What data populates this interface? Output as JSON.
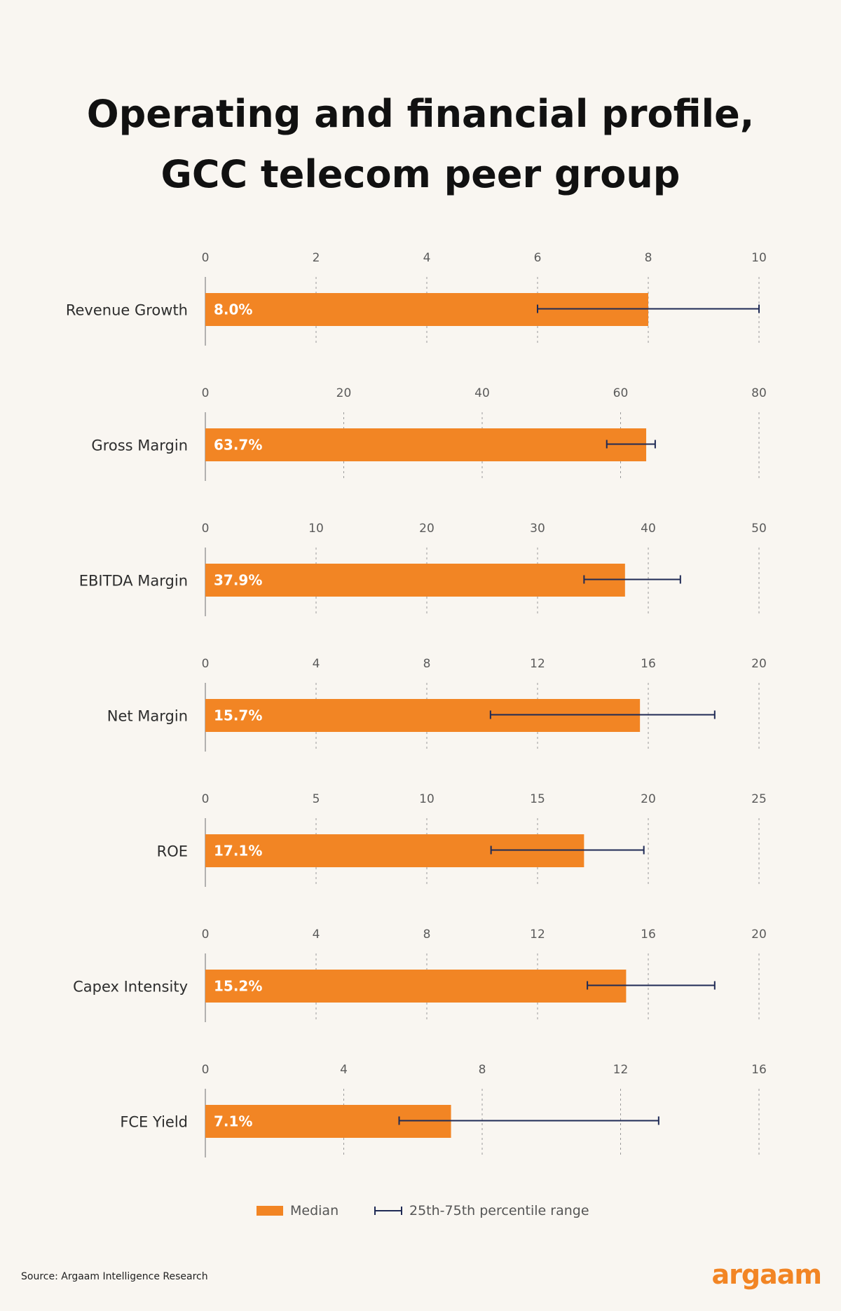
{
  "title_line1": "Operating and financial profile,",
  "title_line2": "GCC telecom peer group",
  "colors": {
    "background": "#f9f6f1",
    "bar": "#f28524",
    "whisker": "#1f2a55",
    "axis": "#9a9a9a",
    "gridline": "#9a9a9a"
  },
  "legend": {
    "median_label": "Median",
    "range_label": "25th-75th percentile range"
  },
  "source": "Source: Argaam Intelligence Research",
  "brand": "argaam",
  "chart_data": [
    {
      "type": "bar",
      "category": "Revenue Growth",
      "value": 8.0,
      "value_label": "8.0%",
      "range": [
        6.0,
        10.0
      ],
      "xlim": [
        0,
        10
      ],
      "ticks": [
        0,
        2,
        4,
        6,
        8,
        10
      ],
      "unit": "%"
    },
    {
      "type": "bar",
      "category": "Gross Margin",
      "value": 63.7,
      "value_label": "63.7%",
      "range": [
        58.0,
        65.0
      ],
      "xlim": [
        0,
        80
      ],
      "ticks": [
        0,
        20,
        40,
        60,
        80
      ],
      "unit": "%"
    },
    {
      "type": "bar",
      "category": "EBITDA Margin",
      "value": 37.9,
      "value_label": "37.9%",
      "range": [
        34.2,
        42.9
      ],
      "xlim": [
        0,
        50
      ],
      "ticks": [
        0,
        10,
        20,
        30,
        40,
        50
      ],
      "unit": "%"
    },
    {
      "type": "bar",
      "category": "Net Margin",
      "value": 15.7,
      "value_label": "15.7%",
      "range": [
        10.3,
        18.4
      ],
      "xlim": [
        0,
        20
      ],
      "ticks": [
        0,
        4,
        8,
        12,
        16,
        20
      ],
      "unit": "%"
    },
    {
      "type": "bar",
      "category": "ROE",
      "value": 17.1,
      "value_label": "17.1%",
      "range": [
        12.9,
        19.8
      ],
      "xlim": [
        0,
        25
      ],
      "ticks": [
        0,
        5,
        10,
        15,
        20,
        25
      ],
      "unit": "%"
    },
    {
      "type": "bar",
      "category": "Capex Intensity",
      "value": 15.2,
      "value_label": "15.2%",
      "range": [
        13.8,
        18.4
      ],
      "xlim": [
        0,
        20
      ],
      "ticks": [
        0,
        4,
        8,
        12,
        16,
        20
      ],
      "unit": "%"
    },
    {
      "type": "bar",
      "category": "FCE Yield",
      "value": 7.1,
      "value_label": "7.1%",
      "range": [
        5.6,
        13.1
      ],
      "xlim": [
        0,
        16
      ],
      "ticks": [
        0,
        4,
        8,
        12,
        16
      ],
      "unit": "%"
    }
  ]
}
